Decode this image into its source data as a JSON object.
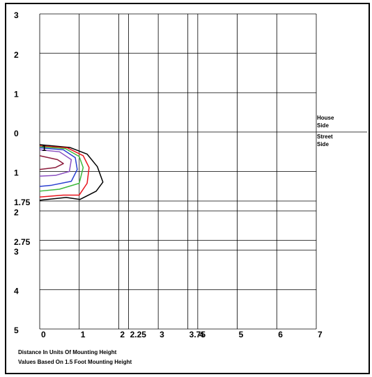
{
  "chart_data": {
    "type": "contour",
    "xlabel": "Distance In Units Of Mounting Height",
    "note": "Values Based On 1.5 Foot Mounting Height",
    "side_labels": [
      "House Side",
      "Street Side"
    ],
    "contour_label": "1",
    "xlim": [
      0,
      7
    ],
    "xticks": [
      0,
      1,
      2,
      2.25,
      3,
      3.75,
      4,
      5,
      6,
      7
    ],
    "ylim": [
      -5,
      3
    ],
    "yticks": [
      3,
      2,
      1,
      0,
      {
        "value": -1,
        "label": "1"
      },
      {
        "value": -1.75,
        "label": "1.75"
      },
      {
        "value": -2,
        "label": "2"
      },
      {
        "value": -2.75,
        "label": "2.75"
      },
      {
        "value": -3,
        "label": "3"
      },
      {
        "value": -4,
        "label": "4"
      },
      {
        "value": -5,
        "label": "5"
      }
    ],
    "grid": true,
    "series": [
      {
        "color": "#000000",
        "x": [
          0,
          0.76,
          1.2,
          1.46,
          1.6,
          1.43,
          1.02,
          0.67,
          0
        ],
        "y": [
          -0.32,
          -0.39,
          -0.56,
          -0.88,
          -1.27,
          -1.5,
          -1.71,
          -1.66,
          -1.73
        ]
      },
      {
        "color": "#e8141c",
        "x": [
          0,
          0.7,
          1.1,
          1.25,
          1.2,
          1.0,
          0.6,
          0
        ],
        "y": [
          -0.35,
          -0.4,
          -0.6,
          -0.9,
          -1.3,
          -1.6,
          -1.6,
          -1.65
        ]
      },
      {
        "color": "#3cb83c",
        "x": [
          0,
          0.65,
          1.0,
          1.1,
          1.0,
          0.5,
          0
        ],
        "y": [
          -0.37,
          -0.42,
          -0.62,
          -0.9,
          -1.3,
          -1.45,
          -1.5
        ]
      },
      {
        "color": "#2a3fd0",
        "x": [
          0,
          0.6,
          0.9,
          0.95,
          0.8,
          0.3,
          0
        ],
        "y": [
          -0.4,
          -0.45,
          -0.65,
          -0.95,
          -1.25,
          -1.35,
          -1.38
        ]
      },
      {
        "color": "#8a4fc0",
        "x": [
          0,
          0.5,
          0.8,
          0.75,
          0.4,
          0
        ],
        "y": [
          -0.45,
          -0.5,
          -0.7,
          -1.0,
          -1.1,
          -1.12
        ]
      },
      {
        "color": "#8b1a3a",
        "x": [
          0,
          0.45,
          0.6,
          0.4,
          0
        ],
        "y": [
          -0.6,
          -0.7,
          -0.8,
          -0.9,
          -0.95
        ]
      }
    ]
  }
}
